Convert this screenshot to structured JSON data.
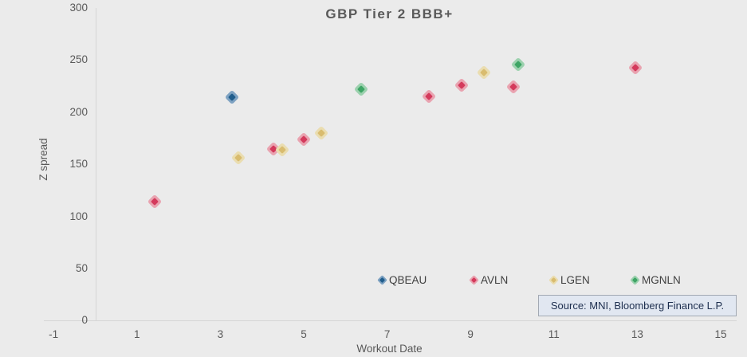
{
  "chart_data": {
    "type": "scatter",
    "title": "GBP Tier 2 BBB+",
    "xlabel": "Workout Date",
    "ylabel": "Z spread",
    "xlim": [
      -1,
      15
    ],
    "ylim": [
      0,
      300
    ],
    "xticks": [
      -1,
      1,
      3,
      5,
      7,
      9,
      11,
      13,
      15
    ],
    "yticks": [
      0,
      50,
      100,
      150,
      200,
      250,
      300
    ],
    "grid": false,
    "legend_position": "bottom-right-inside",
    "marker": "diamond",
    "series": [
      {
        "name": "QBEAU",
        "color": "#205d8c",
        "halo_color": "#7ea2c2",
        "points": [
          [
            3.27,
            214
          ]
        ]
      },
      {
        "name": "AVLN",
        "color": "#d43a5c",
        "halo_color": "#e9a3b0",
        "points": [
          [
            1.43,
            114
          ],
          [
            4.27,
            165
          ],
          [
            5.0,
            174
          ],
          [
            8.0,
            215
          ],
          [
            8.79,
            226
          ],
          [
            10.02,
            224
          ],
          [
            12.95,
            243
          ]
        ]
      },
      {
        "name": "LGEN",
        "color": "#d9bc6f",
        "halo_color": "#eaddb0",
        "points": [
          [
            3.43,
            156
          ],
          [
            4.48,
            164
          ],
          [
            5.42,
            180
          ],
          [
            9.33,
            238
          ]
        ]
      },
      {
        "name": "MGNLN",
        "color": "#3ea565",
        "halo_color": "#9cd1ae",
        "points": [
          [
            6.38,
            222
          ],
          [
            10.15,
            246
          ]
        ]
      }
    ],
    "source": "Source: MNI, Bloomberg Finance L.P.",
    "background_color": "#ebebeb",
    "axis_color": "#d6d6d6",
    "text_color": "#595959"
  }
}
